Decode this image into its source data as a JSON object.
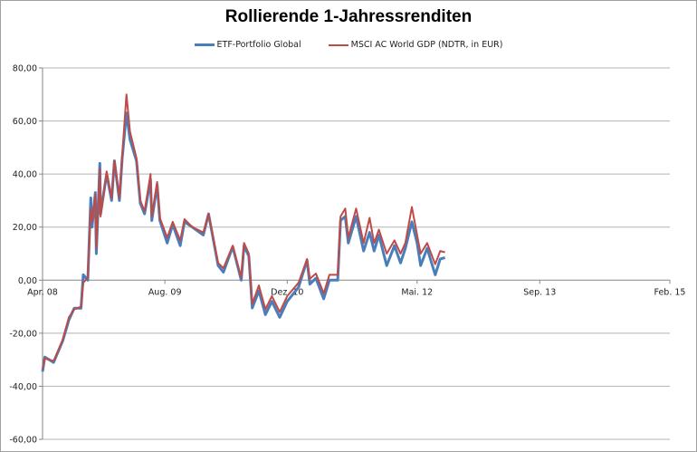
{
  "chart_data": {
    "type": "line",
    "title": "Rollierende 1-Jahressrenditen",
    "ylim": [
      -60,
      80
    ],
    "yticks": [
      "80,00",
      "60,00",
      "40,00",
      "20,00",
      "0,00",
      "-20,00",
      "-40,00",
      "-60,00"
    ],
    "ytick_values": [
      80,
      60,
      40,
      20,
      0,
      -20,
      -40,
      -60
    ],
    "xlim": [
      "2008-04-01",
      "2015-02-01"
    ],
    "xticks": [
      "Apr. 08",
      "Aug. 09",
      "Dez. 10",
      "Mai. 12",
      "Sep. 13",
      "Feb. 15"
    ],
    "xtick_dates": [
      "2008-04-01",
      "2009-08-01",
      "2010-12-01",
      "2012-05-01",
      "2013-09-01",
      "2015-02-01"
    ],
    "grid": true,
    "legend_placement": "top",
    "x": [
      "2008-04-01",
      "2008-04-10",
      "2008-05-15",
      "2008-06-20",
      "2008-07-15",
      "2008-08-05",
      "2008-09-01",
      "2008-09-10",
      "2008-09-28",
      "2008-10-10",
      "2008-10-15",
      "2008-10-28",
      "2008-11-01",
      "2008-11-15",
      "2008-11-18",
      "2008-12-12",
      "2009-01-01",
      "2009-01-12",
      "2009-02-01",
      "2009-02-12",
      "2009-03-01",
      "2009-03-15",
      "2009-04-10",
      "2009-04-25",
      "2009-05-12",
      "2009-06-05",
      "2009-06-10",
      "2009-07-01",
      "2009-07-12",
      "2009-08-10",
      "2009-09-01",
      "2009-10-01",
      "2009-10-18",
      "2009-11-18",
      "2010-01-01",
      "2010-01-22",
      "2010-03-01",
      "2010-03-22",
      "2010-04-28",
      "2010-06-01",
      "2010-06-12",
      "2010-07-01",
      "2010-07-15",
      "2010-08-10",
      "2010-09-05",
      "2010-10-01",
      "2010-11-01",
      "2010-12-01",
      "2011-01-15",
      "2011-02-18",
      "2011-03-01",
      "2011-03-25",
      "2011-04-25",
      "2011-05-18",
      "2011-06-20",
      "2011-07-01",
      "2011-07-20",
      "2011-08-01",
      "2011-09-01",
      "2011-10-01",
      "2011-10-25",
      "2011-11-12",
      "2011-12-01",
      "2012-01-01",
      "2012-02-01",
      "2012-02-25",
      "2012-03-15",
      "2012-04-10",
      "2012-05-01",
      "2012-05-15",
      "2012-06-10",
      "2012-07-12",
      "2012-08-01",
      "2012-08-20"
    ],
    "series": [
      {
        "name": "ETF-Portfolio Global",
        "color": "#4a7ebb",
        "values": [
          -34.5,
          -29,
          -31,
          -23,
          -15,
          -10.6,
          -10.6,
          2,
          0,
          31,
          20,
          33,
          10,
          44,
          25,
          40,
          30,
          45,
          30,
          46,
          63,
          53,
          45,
          29,
          25,
          38,
          22.5,
          36,
          22.5,
          14,
          21,
          13,
          22,
          20,
          17,
          25,
          5.5,
          3,
          12.6,
          0,
          13,
          9,
          -10.5,
          -4,
          -13,
          -8,
          -14,
          -8,
          -2.7,
          7.5,
          -1.5,
          0.7,
          -7,
          0,
          0,
          22.5,
          24,
          14,
          24,
          11,
          18,
          11,
          17,
          5.5,
          13,
          6.5,
          12,
          22,
          14,
          5.5,
          12,
          2,
          8,
          8.5
        ]
      },
      {
        "name": "MSCI AC World GDP (NDTR,  in EUR)",
        "color": "#be4b48",
        "values": [
          -33.5,
          -29.5,
          -30.5,
          -22.5,
          -14,
          -11,
          -10,
          -1,
          1,
          27,
          22,
          32,
          12,
          42,
          24,
          41,
          31,
          45,
          31,
          47,
          70,
          56,
          46,
          30,
          26,
          40,
          24,
          37,
          23.5,
          16,
          22,
          15,
          23,
          20,
          18,
          25,
          6.5,
          4.5,
          13,
          1,
          14,
          10,
          -9,
          -2,
          -11,
          -6,
          -12,
          -6,
          -1,
          8,
          0.5,
          2.5,
          -5,
          2,
          2,
          24,
          27,
          16,
          27,
          14,
          23.5,
          14,
          19,
          10,
          15,
          10,
          14,
          27.6,
          17,
          10,
          14,
          6,
          11,
          10.5
        ]
      }
    ]
  }
}
